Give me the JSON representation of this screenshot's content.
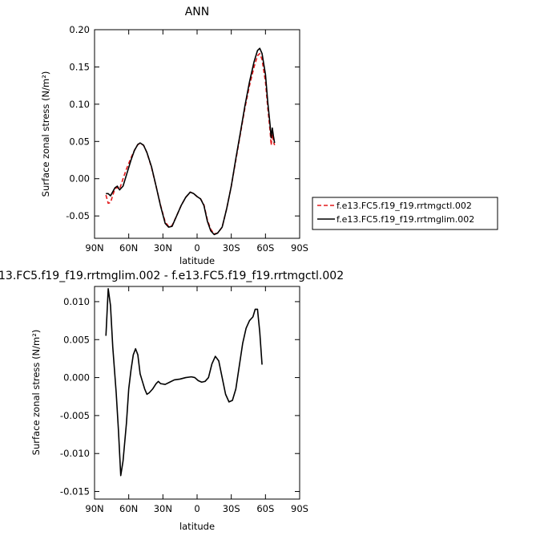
{
  "chart_data": [
    {
      "type": "line",
      "title": "ANN",
      "xlabel": "latitude",
      "ylabel": "Surface zonal stress (N/m²)",
      "xlim": [
        90,
        -90
      ],
      "ylim": [
        -0.08,
        0.2
      ],
      "x_ticks": [
        {
          "value": 90,
          "label": "90N"
        },
        {
          "value": 60,
          "label": "60N"
        },
        {
          "value": 30,
          "label": "30N"
        },
        {
          "value": 0,
          "label": "0"
        },
        {
          "value": -30,
          "label": "30S"
        },
        {
          "value": -60,
          "label": "60S"
        },
        {
          "value": -90,
          "label": "90S"
        }
      ],
      "y_ticks": [
        {
          "value": 0.2,
          "label": "0.20"
        },
        {
          "value": 0.15,
          "label": "0.15"
        },
        {
          "value": 0.1,
          "label": "0.10"
        },
        {
          "value": 0.05,
          "label": "0.05"
        },
        {
          "value": 0.0,
          "label": "0.00"
        },
        {
          "value": -0.05,
          "label": "-0.05"
        }
      ],
      "legend_position": "right",
      "series": [
        {
          "name": "f.e13.FC5.f19_f19.rrtmgctl.002",
          "color": "#e31a1c",
          "dash": "dashed",
          "points": [
            [
              80,
              -0.022
            ],
            [
              78,
              -0.033
            ],
            [
              76,
              -0.032
            ],
            [
              72,
              -0.013
            ],
            [
              70,
              -0.012
            ],
            [
              68,
              -0.014
            ],
            [
              65,
              0.0
            ],
            [
              62,
              0.013
            ],
            [
              58,
              0.028
            ],
            [
              55,
              0.038
            ],
            [
              52,
              0.046
            ],
            [
              50,
              0.047
            ],
            [
              47,
              0.045
            ],
            [
              44,
              0.035
            ],
            [
              40,
              0.015
            ],
            [
              36,
              -0.01
            ],
            [
              32,
              -0.036
            ],
            [
              28,
              -0.058
            ],
            [
              25,
              -0.064
            ],
            [
              22,
              -0.063
            ],
            [
              18,
              -0.05
            ],
            [
              14,
              -0.036
            ],
            [
              10,
              -0.025
            ],
            [
              6,
              -0.018
            ],
            [
              3,
              -0.02
            ],
            [
              0,
              -0.024
            ],
            [
              -3,
              -0.027
            ],
            [
              -6,
              -0.035
            ],
            [
              -9,
              -0.055
            ],
            [
              -12,
              -0.068
            ],
            [
              -15,
              -0.074
            ],
            [
              -18,
              -0.073
            ],
            [
              -22,
              -0.065
            ],
            [
              -26,
              -0.04
            ],
            [
              -30,
              -0.01
            ],
            [
              -34,
              0.025
            ],
            [
              -38,
              0.06
            ],
            [
              -42,
              0.095
            ],
            [
              -46,
              0.125
            ],
            [
              -50,
              0.15
            ],
            [
              -53,
              0.165
            ],
            [
              -55,
              0.168
            ],
            [
              -57,
              0.16
            ],
            [
              -60,
              0.13
            ],
            [
              -62,
              0.095
            ],
            [
              -64,
              0.065
            ],
            [
              -65,
              0.045
            ],
            [
              -66,
              0.06
            ],
            [
              -67,
              0.05
            ],
            [
              -68,
              0.045
            ]
          ]
        },
        {
          "name": "f.e13.FC5.f19_f19.rrtmglim.002",
          "color": "#000000",
          "dash": "solid",
          "points": [
            [
              80,
              -0.02
            ],
            [
              78,
              -0.02
            ],
            [
              76,
              -0.023
            ],
            [
              72,
              -0.012
            ],
            [
              70,
              -0.01
            ],
            [
              68,
              -0.015
            ],
            [
              65,
              -0.01
            ],
            [
              62,
              0.005
            ],
            [
              58,
              0.025
            ],
            [
              55,
              0.038
            ],
            [
              52,
              0.046
            ],
            [
              50,
              0.048
            ],
            [
              47,
              0.045
            ],
            [
              44,
              0.035
            ],
            [
              40,
              0.016
            ],
            [
              36,
              -0.01
            ],
            [
              32,
              -0.037
            ],
            [
              28,
              -0.06
            ],
            [
              25,
              -0.065
            ],
            [
              22,
              -0.064
            ],
            [
              18,
              -0.05
            ],
            [
              14,
              -0.036
            ],
            [
              10,
              -0.025
            ],
            [
              6,
              -0.018
            ],
            [
              3,
              -0.02
            ],
            [
              0,
              -0.024
            ],
            [
              -3,
              -0.027
            ],
            [
              -6,
              -0.036
            ],
            [
              -9,
              -0.057
            ],
            [
              -12,
              -0.07
            ],
            [
              -15,
              -0.075
            ],
            [
              -18,
              -0.073
            ],
            [
              -22,
              -0.065
            ],
            [
              -26,
              -0.04
            ],
            [
              -30,
              -0.01
            ],
            [
              -34,
              0.027
            ],
            [
              -38,
              0.062
            ],
            [
              -42,
              0.098
            ],
            [
              -46,
              0.13
            ],
            [
              -50,
              0.157
            ],
            [
              -53,
              0.172
            ],
            [
              -55,
              0.175
            ],
            [
              -57,
              0.168
            ],
            [
              -60,
              0.14
            ],
            [
              -62,
              0.103
            ],
            [
              -64,
              0.073
            ],
            [
              -65,
              0.055
            ],
            [
              -66,
              0.068
            ],
            [
              -67,
              0.057
            ],
            [
              -68,
              0.048
            ]
          ]
        }
      ]
    },
    {
      "type": "line",
      "title": "13.FC5.f19_f19.rrtmglim.002 - f.e13.FC5.f19_f19.rrtmgctl.002",
      "xlabel": "latitude",
      "ylabel": "Surface zonal stress (N/m²)",
      "xlim": [
        90,
        -90
      ],
      "ylim": [
        -0.016,
        0.012
      ],
      "x_ticks": [
        {
          "value": 90,
          "label": "90N"
        },
        {
          "value": 60,
          "label": "60N"
        },
        {
          "value": 30,
          "label": "30N"
        },
        {
          "value": 0,
          "label": "0"
        },
        {
          "value": -30,
          "label": "30S"
        },
        {
          "value": -60,
          "label": "60S"
        },
        {
          "value": -90,
          "label": "90S"
        }
      ],
      "y_ticks": [
        {
          "value": 0.01,
          "label": "0.010"
        },
        {
          "value": 0.005,
          "label": "0.005"
        },
        {
          "value": 0.0,
          "label": "0.000"
        },
        {
          "value": -0.005,
          "label": "-0.005"
        },
        {
          "value": -0.01,
          "label": "-0.010"
        },
        {
          "value": -0.015,
          "label": "-0.015"
        }
      ],
      "series": [
        {
          "color": "#000000",
          "dash": "solid",
          "points": [
            [
              80,
              0.0055
            ],
            [
              78,
              0.0117
            ],
            [
              76,
              0.0095
            ],
            [
              74,
              0.004
            ],
            [
              71,
              -0.002
            ],
            [
              69,
              -0.007
            ],
            [
              67,
              -0.0129
            ],
            [
              65,
              -0.011
            ],
            [
              62,
              -0.006
            ],
            [
              60,
              -0.0015
            ],
            [
              58,
              0.001
            ],
            [
              56,
              0.003
            ],
            [
              54,
              0.0038
            ],
            [
              52,
              0.003
            ],
            [
              50,
              0.0005
            ],
            [
              48,
              -0.0005
            ],
            [
              46,
              -0.0015
            ],
            [
              44,
              -0.0022
            ],
            [
              42,
              -0.002
            ],
            [
              39,
              -0.0015
            ],
            [
              36,
              -0.0008
            ],
            [
              34,
              -0.0005
            ],
            [
              32,
              -0.0008
            ],
            [
              28,
              -0.0009
            ],
            [
              24,
              -0.0006
            ],
            [
              20,
              -0.0003
            ],
            [
              15,
              -0.0002
            ],
            [
              10,
              0.0
            ],
            [
              5,
              0.0001
            ],
            [
              2,
              0.0
            ],
            [
              -1,
              -0.0004
            ],
            [
              -4,
              -0.0006
            ],
            [
              -7,
              -0.0005
            ],
            [
              -10,
              0.0
            ],
            [
              -13,
              0.0018
            ],
            [
              -16,
              0.0028
            ],
            [
              -19,
              0.0022
            ],
            [
              -22,
              0.0
            ],
            [
              -25,
              -0.0022
            ],
            [
              -28,
              -0.0032
            ],
            [
              -31,
              -0.003
            ],
            [
              -34,
              -0.0015
            ],
            [
              -37,
              0.0015
            ],
            [
              -40,
              0.0045
            ],
            [
              -43,
              0.0065
            ],
            [
              -46,
              0.0075
            ],
            [
              -49,
              0.008
            ],
            [
              -51,
              0.009
            ],
            [
              -53,
              0.009
            ],
            [
              -55,
              0.006
            ],
            [
              -57,
              0.0017
            ]
          ]
        }
      ]
    }
  ]
}
